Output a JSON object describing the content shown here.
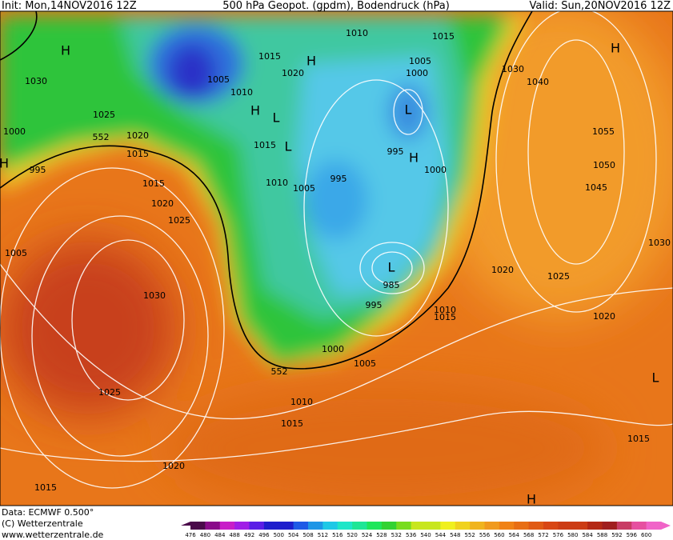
{
  "header": {
    "init": "Init: Mon,14NOV2016 12Z",
    "title": "500 hPa Geopot. (gpdm), Bodendruck (hPa)",
    "valid": "Valid: Sun,20NOV2016 12Z"
  },
  "map": {
    "isobar_labels": [
      "1030",
      "1025",
      "1020",
      "1015",
      "1000",
      "995",
      "1015",
      "1020",
      "1025",
      "1030",
      "1005",
      "1025",
      "1020",
      "1015",
      "1010",
      "1015",
      "1005",
      "1000",
      "995",
      "985",
      "1010",
      "1015",
      "1020",
      "1025",
      "1020",
      "1015",
      "1030",
      "1045",
      "1050",
      "1055",
      "1040",
      "1030",
      "1010",
      "1015",
      "1005",
      "1000",
      "1020",
      "1015",
      "1005",
      "1010",
      "1015",
      "1010",
      "1005",
      "995",
      "995",
      "1000"
    ],
    "contour_labels": [
      "552",
      "552"
    ],
    "highs": [
      "H",
      "H",
      "H",
      "H",
      "H",
      "H",
      "H"
    ],
    "lows": [
      "L",
      "L",
      "L",
      "L",
      "L"
    ]
  },
  "footer": {
    "data": "Data: ECMWF  0.500°",
    "copyright": "(C) Wetterzentrale",
    "url": "www.wetterzentrale.de"
  },
  "colorbar": {
    "labels": [
      "476",
      "480",
      "484",
      "488",
      "492",
      "496",
      "500",
      "504",
      "508",
      "512",
      "516",
      "520",
      "524",
      "528",
      "532",
      "536",
      "540",
      "544",
      "548",
      "552",
      "556",
      "560",
      "564",
      "568",
      "572",
      "576",
      "580",
      "584",
      "588",
      "592",
      "596",
      "600"
    ]
  }
}
